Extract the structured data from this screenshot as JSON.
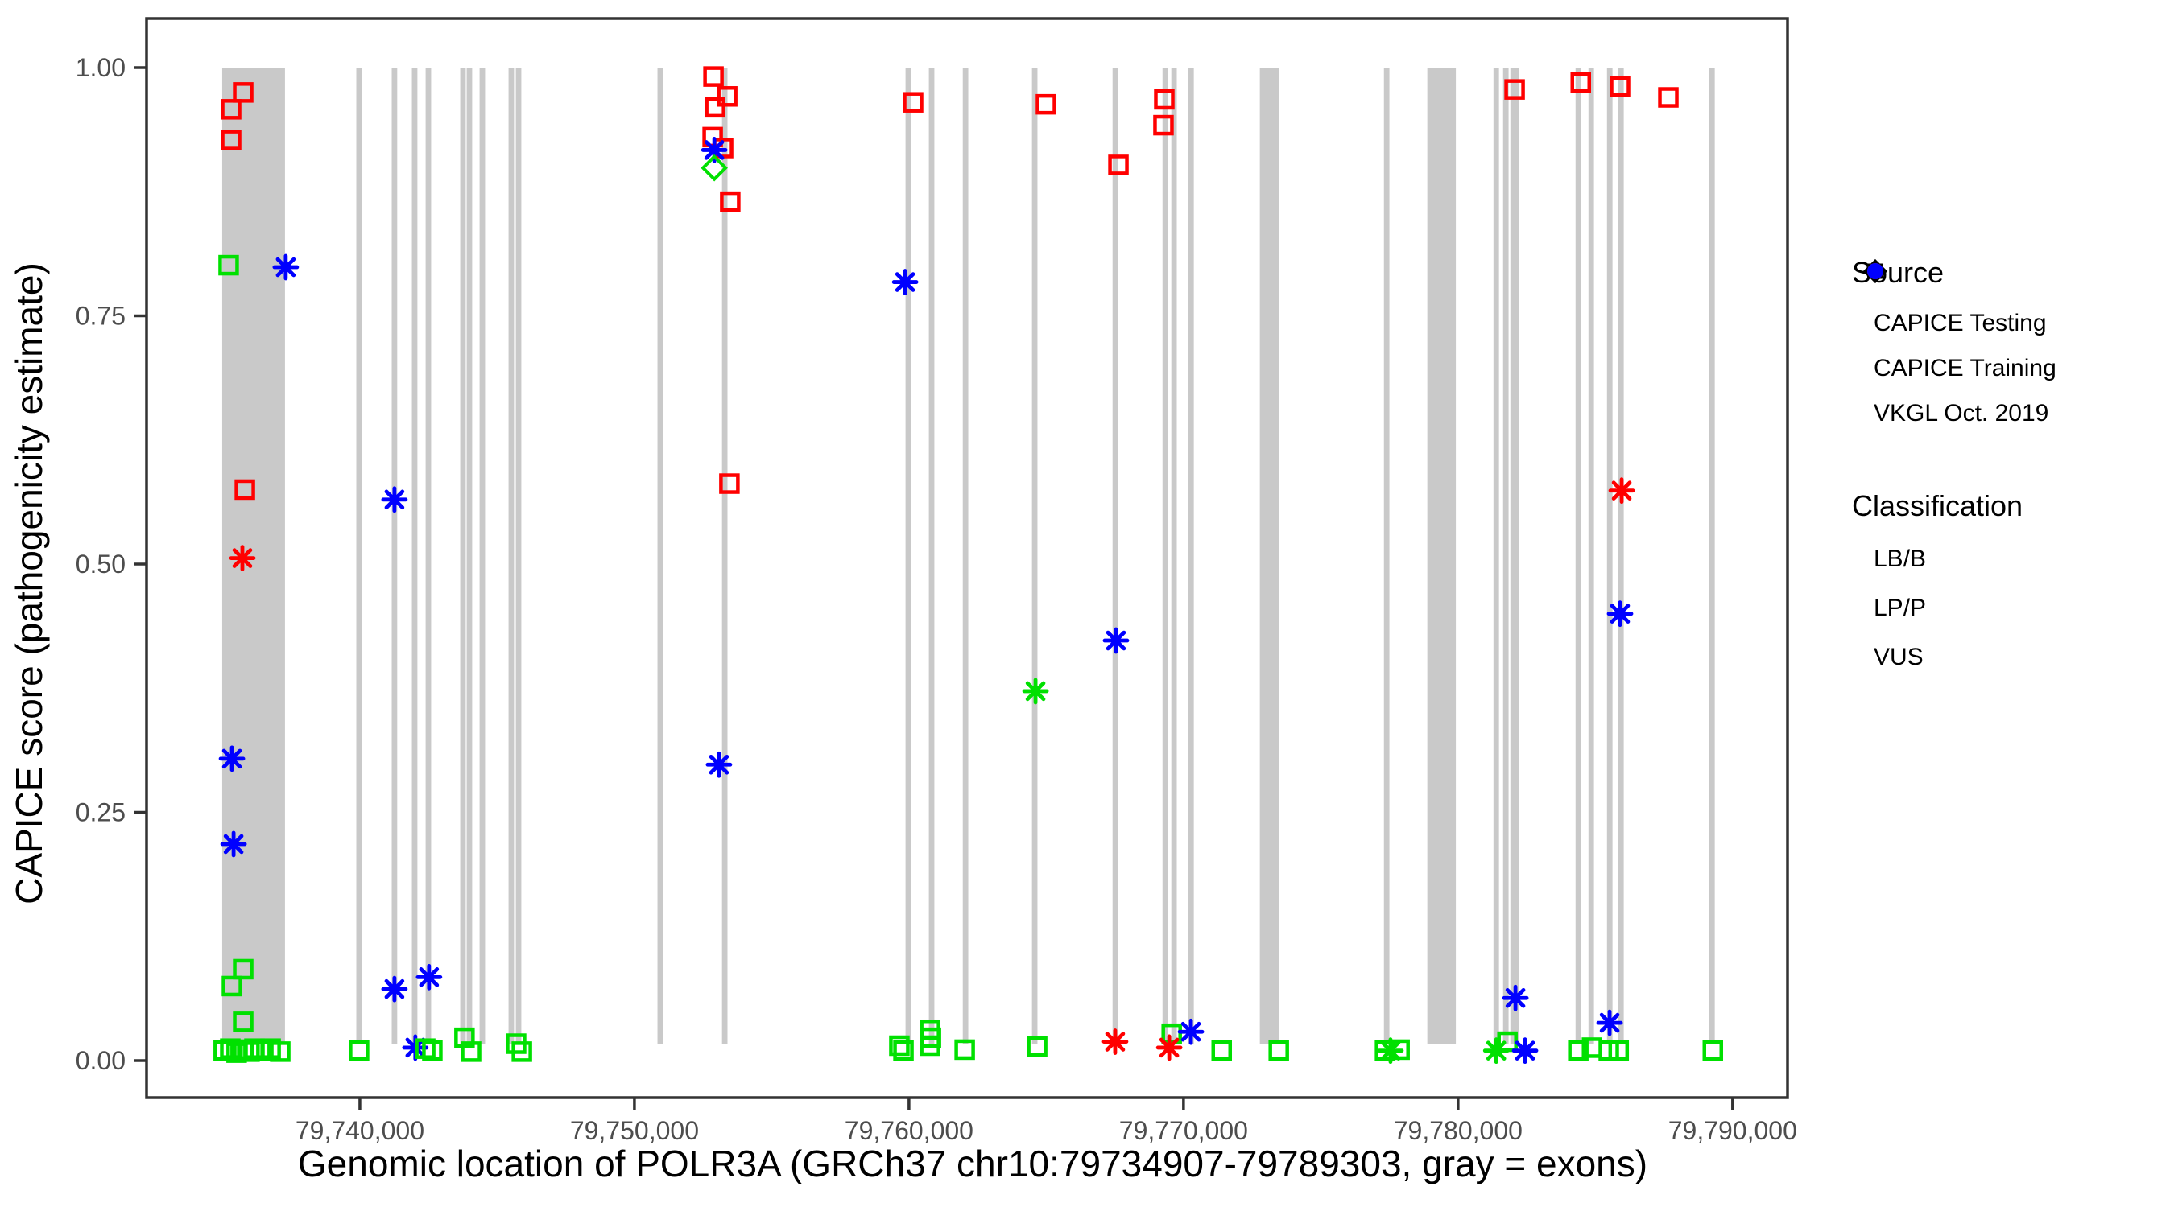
{
  "chart_data": {
    "type": "scatter",
    "title": "",
    "xlabel": "Genomic location of POLR3A (GRCh37 chr10:79734907-79789303, gray = exons)",
    "ylabel": "CAPICE score (pathogenicity estimate)",
    "x_domain": [
      79732230,
      79792000
    ],
    "ylim": [
      0.0,
      1.0
    ],
    "grid": "off",
    "legend_position": "right",
    "x_ticks": [
      {
        "value": 79740000,
        "label": "79,740,000"
      },
      {
        "value": 79750000,
        "label": "79,750,000"
      },
      {
        "value": 79760000,
        "label": "79,760,000"
      },
      {
        "value": 79770000,
        "label": "79,770,000"
      },
      {
        "value": 79780000,
        "label": "79,780,000"
      },
      {
        "value": 79790000,
        "label": "79,790,000"
      }
    ],
    "y_ticks": [
      {
        "value": 1.0,
        "label": "1.00"
      },
      {
        "value": 0.75,
        "label": "0.75"
      },
      {
        "value": 0.5,
        "label": "0.50"
      },
      {
        "value": 0.25,
        "label": "0.25"
      },
      {
        "value": 0.0,
        "label": "0.00"
      }
    ],
    "exons_note": "gray vertical bars = exons, drawn from score 0 to 1",
    "exons": [
      {
        "start": 79734985,
        "end": 79737272
      },
      {
        "start": 79739870,
        "end": 79740070
      },
      {
        "start": 79741160,
        "end": 79741360
      },
      {
        "start": 79741895,
        "end": 79742095
      },
      {
        "start": 79742395,
        "end": 79742595
      },
      {
        "start": 79743655,
        "end": 79743855
      },
      {
        "start": 79743890,
        "end": 79744090
      },
      {
        "start": 79744360,
        "end": 79744560
      },
      {
        "start": 79745415,
        "end": 79745615
      },
      {
        "start": 79745680,
        "end": 79745880
      },
      {
        "start": 79750840,
        "end": 79751040
      },
      {
        "start": 79753190,
        "end": 79753390
      },
      {
        "start": 79759875,
        "end": 79760075
      },
      {
        "start": 79760725,
        "end": 79760925
      },
      {
        "start": 79761960,
        "end": 79762160
      },
      {
        "start": 79764480,
        "end": 79764680
      },
      {
        "start": 79767415,
        "end": 79767615
      },
      {
        "start": 79769235,
        "end": 79769435
      },
      {
        "start": 79769555,
        "end": 79769755
      },
      {
        "start": 79770175,
        "end": 79770375
      },
      {
        "start": 79772780,
        "end": 79773490
      },
      {
        "start": 79777300,
        "end": 79777500
      },
      {
        "start": 79778880,
        "end": 79779920
      },
      {
        "start": 79781290,
        "end": 79781490
      },
      {
        "start": 79781640,
        "end": 79781840
      },
      {
        "start": 79781905,
        "end": 79782205
      },
      {
        "start": 79784280,
        "end": 79784480
      },
      {
        "start": 79784750,
        "end": 79784950
      },
      {
        "start": 79785425,
        "end": 79785625
      },
      {
        "start": 79785835,
        "end": 79786035
      },
      {
        "start": 79789150,
        "end": 79789350
      }
    ],
    "points": [
      {
        "pos": 79735750,
        "score": 0.975,
        "source": "training",
        "class": "LP/P"
      },
      {
        "pos": 79735310,
        "score": 0.958,
        "source": "training",
        "class": "LP/P"
      },
      {
        "pos": 79735310,
        "score": 0.927,
        "source": "training",
        "class": "LP/P"
      },
      {
        "pos": 79735810,
        "score": 0.575,
        "source": "training",
        "class": "LP/P"
      },
      {
        "pos": 79735720,
        "score": 0.506,
        "source": "vkgl",
        "class": "LP/P"
      },
      {
        "pos": 79735220,
        "score": 0.801,
        "source": "training",
        "class": "LB/B"
      },
      {
        "pos": 79737300,
        "score": 0.799,
        "source": "vkgl",
        "class": "VUS"
      },
      {
        "pos": 79735340,
        "score": 0.304,
        "source": "vkgl",
        "class": "VUS"
      },
      {
        "pos": 79735400,
        "score": 0.218,
        "source": "vkgl",
        "class": "VUS"
      },
      {
        "pos": 79735750,
        "score": 0.092,
        "source": "training",
        "class": "LB/B"
      },
      {
        "pos": 79735340,
        "score": 0.075,
        "source": "training",
        "class": "LB/B"
      },
      {
        "pos": 79735750,
        "score": 0.039,
        "source": "training",
        "class": "LB/B"
      },
      {
        "pos": 79735040,
        "score": 0.01,
        "source": "training",
        "class": "LB/B"
      },
      {
        "pos": 79735280,
        "score": 0.012,
        "source": "training",
        "class": "LB/B"
      },
      {
        "pos": 79735510,
        "score": 0.008,
        "source": "training",
        "class": "LB/B"
      },
      {
        "pos": 79735750,
        "score": 0.011,
        "source": "training",
        "class": "LB/B"
      },
      {
        "pos": 79735980,
        "score": 0.009,
        "source": "training",
        "class": "LB/B"
      },
      {
        "pos": 79736160,
        "score": 0.012,
        "source": "training",
        "class": "LB/B"
      },
      {
        "pos": 79736390,
        "score": 0.01,
        "source": "training",
        "class": "LB/B"
      },
      {
        "pos": 79736750,
        "score": 0.012,
        "source": "training",
        "class": "LB/B"
      },
      {
        "pos": 79737100,
        "score": 0.009,
        "source": "training",
        "class": "LB/B"
      },
      {
        "pos": 79739970,
        "score": 0.01,
        "source": "training",
        "class": "LB/B"
      },
      {
        "pos": 79741260,
        "score": 0.565,
        "source": "vkgl",
        "class": "VUS"
      },
      {
        "pos": 79741260,
        "score": 0.072,
        "source": "vkgl",
        "class": "VUS"
      },
      {
        "pos": 79742520,
        "score": 0.084,
        "source": "vkgl",
        "class": "VUS"
      },
      {
        "pos": 79742020,
        "score": 0.013,
        "source": "vkgl",
        "class": "VUS"
      },
      {
        "pos": 79742380,
        "score": 0.012,
        "source": "training",
        "class": "LB/B"
      },
      {
        "pos": 79742640,
        "score": 0.01,
        "source": "training",
        "class": "LB/B"
      },
      {
        "pos": 79743810,
        "score": 0.023,
        "source": "training",
        "class": "LB/B"
      },
      {
        "pos": 79744050,
        "score": 0.009,
        "source": "training",
        "class": "LB/B"
      },
      {
        "pos": 79745690,
        "score": 0.017,
        "source": "training",
        "class": "LB/B"
      },
      {
        "pos": 79745900,
        "score": 0.009,
        "source": "training",
        "class": "LB/B"
      },
      {
        "pos": 79752880,
        "score": 0.991,
        "source": "training",
        "class": "LP/P"
      },
      {
        "pos": 79753380,
        "score": 0.971,
        "source": "training",
        "class": "LP/P"
      },
      {
        "pos": 79752940,
        "score": 0.96,
        "source": "training",
        "class": "LP/P"
      },
      {
        "pos": 79752850,
        "score": 0.93,
        "source": "training",
        "class": "LP/P"
      },
      {
        "pos": 79753230,
        "score": 0.919,
        "source": "training",
        "class": "LP/P"
      },
      {
        "pos": 79752910,
        "score": 0.917,
        "source": "vkgl",
        "class": "VUS"
      },
      {
        "pos": 79752910,
        "score": 0.899,
        "source": "testing",
        "class": "LB/B"
      },
      {
        "pos": 79753490,
        "score": 0.865,
        "source": "training",
        "class": "LP/P"
      },
      {
        "pos": 79753460,
        "score": 0.581,
        "source": "training",
        "class": "LP/P"
      },
      {
        "pos": 79753080,
        "score": 0.298,
        "source": "vkgl",
        "class": "VUS"
      },
      {
        "pos": 79760150,
        "score": 0.965,
        "source": "training",
        "class": "LP/P"
      },
      {
        "pos": 79759860,
        "score": 0.784,
        "source": "vkgl",
        "class": "VUS"
      },
      {
        "pos": 79760770,
        "score": 0.031,
        "source": "training",
        "class": "LB/B"
      },
      {
        "pos": 79760800,
        "score": 0.023,
        "source": "training",
        "class": "LB/B"
      },
      {
        "pos": 79760770,
        "score": 0.015,
        "source": "training",
        "class": "LB/B"
      },
      {
        "pos": 79759650,
        "score": 0.015,
        "source": "training",
        "class": "LB/B"
      },
      {
        "pos": 79759800,
        "score": 0.01,
        "source": "training",
        "class": "LB/B"
      },
      {
        "pos": 79762030,
        "score": 0.011,
        "source": "training",
        "class": "LB/B"
      },
      {
        "pos": 79764990,
        "score": 0.963,
        "source": "training",
        "class": "LP/P"
      },
      {
        "pos": 79764610,
        "score": 0.372,
        "source": "vkgl",
        "class": "LB/B"
      },
      {
        "pos": 79764670,
        "score": 0.014,
        "source": "training",
        "class": "LB/B"
      },
      {
        "pos": 79767630,
        "score": 0.902,
        "source": "training",
        "class": "LP/P"
      },
      {
        "pos": 79767540,
        "score": 0.423,
        "source": "vkgl",
        "class": "VUS"
      },
      {
        "pos": 79767510,
        "score": 0.019,
        "source": "vkgl",
        "class": "LP/P"
      },
      {
        "pos": 79769300,
        "score": 0.968,
        "source": "training",
        "class": "LP/P"
      },
      {
        "pos": 79769270,
        "score": 0.942,
        "source": "training",
        "class": "LP/P"
      },
      {
        "pos": 79769570,
        "score": 0.027,
        "source": "training",
        "class": "LB/B"
      },
      {
        "pos": 79769480,
        "score": 0.013,
        "source": "vkgl",
        "class": "LP/P"
      },
      {
        "pos": 79770270,
        "score": 0.029,
        "source": "vkgl",
        "class": "VUS"
      },
      {
        "pos": 79771390,
        "score": 0.01,
        "source": "training",
        "class": "LB/B"
      },
      {
        "pos": 79773470,
        "score": 0.01,
        "source": "training",
        "class": "LB/B"
      },
      {
        "pos": 79777340,
        "score": 0.01,
        "source": "training",
        "class": "LB/B"
      },
      {
        "pos": 79777540,
        "score": 0.01,
        "source": "vkgl",
        "class": "LB/B"
      },
      {
        "pos": 79777870,
        "score": 0.011,
        "source": "training",
        "class": "LB/B"
      },
      {
        "pos": 79781390,
        "score": 0.01,
        "source": "vkgl",
        "class": "LB/B"
      },
      {
        "pos": 79781800,
        "score": 0.019,
        "source": "training",
        "class": "LB/B"
      },
      {
        "pos": 79782090,
        "score": 0.063,
        "source": "vkgl",
        "class": "VUS"
      },
      {
        "pos": 79782440,
        "score": 0.01,
        "source": "vkgl",
        "class": "VUS"
      },
      {
        "pos": 79782060,
        "score": 0.978,
        "source": "training",
        "class": "LP/P"
      },
      {
        "pos": 79784470,
        "score": 0.985,
        "source": "training",
        "class": "LP/P"
      },
      {
        "pos": 79785900,
        "score": 0.981,
        "source": "training",
        "class": "LP/P"
      },
      {
        "pos": 79787660,
        "score": 0.97,
        "source": "training",
        "class": "LP/P"
      },
      {
        "pos": 79785960,
        "score": 0.574,
        "source": "vkgl",
        "class": "LP/P"
      },
      {
        "pos": 79785900,
        "score": 0.45,
        "source": "vkgl",
        "class": "VUS"
      },
      {
        "pos": 79784380,
        "score": 0.01,
        "source": "training",
        "class": "LB/B"
      },
      {
        "pos": 79784880,
        "score": 0.013,
        "source": "training",
        "class": "LB/B"
      },
      {
        "pos": 79785490,
        "score": 0.01,
        "source": "training",
        "class": "LB/B"
      },
      {
        "pos": 79785850,
        "score": 0.01,
        "source": "training",
        "class": "LB/B"
      },
      {
        "pos": 79785520,
        "score": 0.038,
        "source": "vkgl",
        "class": "VUS"
      },
      {
        "pos": 79789280,
        "score": 0.01,
        "source": "training",
        "class": "LB/B"
      }
    ]
  },
  "legend": {
    "source": {
      "title": "Source",
      "items": [
        {
          "label": "CAPICE Testing",
          "marker": "diamond-open-icon"
        },
        {
          "label": "CAPICE Training",
          "marker": "square-open-icon"
        },
        {
          "label": "VKGL Oct. 2019",
          "marker": "asterisk-icon"
        }
      ]
    },
    "classification": {
      "title": "Classification",
      "items": [
        {
          "label": "LB/B",
          "color": "#00e000"
        },
        {
          "label": "LP/P",
          "color": "#ff0000"
        },
        {
          "label": "VUS",
          "color": "#0000ff"
        }
      ]
    }
  },
  "colors": {
    "lbb": "#00e000",
    "lpp": "#ff0000",
    "vus": "#0000ff",
    "exon_gray": "#c9c9c9",
    "axis": "#333333",
    "tick_text": "#4d4d4d",
    "legend_glyph": "#000000"
  }
}
